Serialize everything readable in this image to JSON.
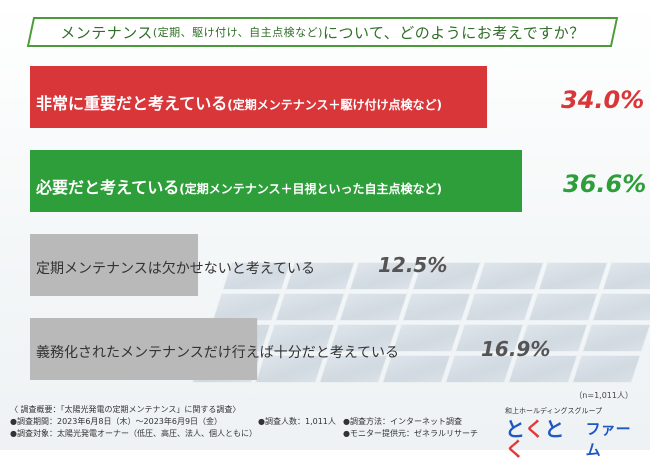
{
  "title": {
    "pre": "メンテナンス",
    "paren": "(定期、駆け付け、自主点検など)",
    "post": "について、どのようにお考えですか？"
  },
  "chart_data": {
    "type": "bar",
    "orientation": "horizontal",
    "categories": [
      "非常に重要だと考えている(定期メンテナンス＋駆け付け点検など)",
      "必要だと考えている(定期メンテナンス＋目視といった自主点検など)",
      "定期メンテナンスは欠かせないと考えている",
      "義務化されたメンテナンスだけ行えば十分だと考えている"
    ],
    "values": [
      34.0,
      36.6,
      12.5,
      16.9
    ],
    "value_labels": [
      "34.0%",
      "36.6%",
      "12.5%",
      "16.9%"
    ],
    "colors": [
      "#d9363a",
      "#2e9e3a",
      "#b9b9b9",
      "#b9b9b9"
    ],
    "value_colors": [
      "#d9363a",
      "#2e9e3a",
      "#555555",
      "#555555"
    ],
    "label_colors": [
      "#ffffff",
      "#ffffff",
      "#333333",
      "#333333"
    ]
  },
  "rows": [
    {
      "main": "非常に重要だと考えている",
      "paren": "(定期メンテナンス＋駆け付け点検など)"
    },
    {
      "main": "必要だと考えている",
      "paren": "(定期メンテナンス＋目視といった自主点検など)"
    },
    {
      "main": "定期メンテナンスは欠かせないと考えている",
      "paren": ""
    },
    {
      "main": "義務化されたメンテナンスだけ行えば十分だと考えている",
      "paren": ""
    }
  ],
  "note": "（n=1,011人）",
  "footer": {
    "summary": "〈 調査概要：「太陽光発電の定期メンテナンス」に関する調査〉",
    "period": "●調査期間：2023年6月8日（木）～2023年6月9日（金）",
    "count": "●調査人数：1,011人",
    "method": "●調査方法：インターネット調査",
    "target": "●調査対象：太陽光発電オーナー（低圧、高圧、法人、個人ともに）",
    "provider": "●モニター提供元：ゼネラルリサーチ"
  },
  "logo": {
    "sub": "和上ホールディングスグループ",
    "mark_a": "と",
    "mark_b": "く",
    "word": "ファーム"
  }
}
